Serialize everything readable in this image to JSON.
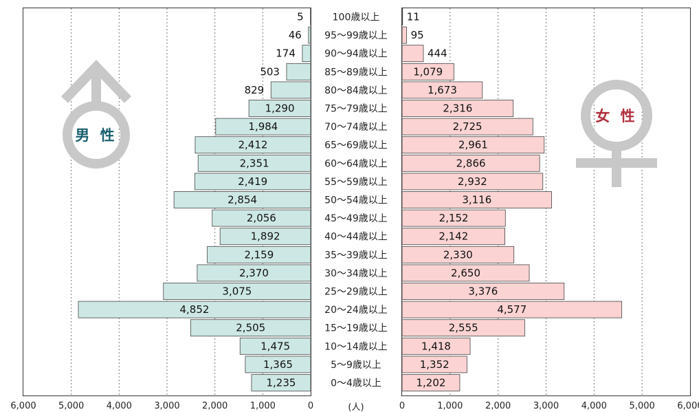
{
  "chart_data": {
    "type": "bar",
    "layout": "population-pyramid",
    "grid": true,
    "unit_label": "(人)",
    "categories": [
      "100歳以上",
      "95〜99歳以上",
      "90〜94歳以上",
      "85〜89歳以上",
      "80〜84歳以上",
      "75〜79歳以上",
      "70〜74歳以上",
      "65〜69歳以上",
      "60〜64歳以上",
      "55〜59歳以上",
      "50〜54歳以上",
      "45〜49歳以上",
      "40〜44歳以上",
      "35〜39歳以上",
      "30〜34歳以上",
      "25〜29歳以上",
      "20〜24歳以上",
      "15〜19歳以上",
      "10〜14歳以上",
      "5〜9歳以上",
      "0〜4歳以上"
    ],
    "series": [
      {
        "name": "男 性",
        "side": "left",
        "values": [
          5,
          46,
          174,
          503,
          829,
          1290,
          1984,
          2412,
          2351,
          2419,
          2854,
          2056,
          1892,
          2159,
          2370,
          3075,
          4852,
          2505,
          1475,
          1365,
          1235
        ],
        "labels": [
          "5",
          "46",
          "174",
          "503",
          "829",
          "1,290",
          "1,984",
          "2,412",
          "2,351",
          "2,419",
          "2,854",
          "2,056",
          "1,892",
          "2,159",
          "2,370",
          "3,075",
          "4,852",
          "2,505",
          "1,475",
          "1,365",
          "1,235"
        ]
      },
      {
        "name": "女 性",
        "side": "right",
        "values": [
          11,
          95,
          444,
          1079,
          1673,
          2316,
          2725,
          2961,
          2866,
          2932,
          3116,
          2152,
          2142,
          2330,
          2650,
          3376,
          4577,
          2555,
          1418,
          1352,
          1202
        ],
        "labels": [
          "11",
          "95",
          "444",
          "1,079",
          "1,673",
          "2,316",
          "2,725",
          "2,961",
          "2,866",
          "2,932",
          "3,116",
          "2,152",
          "2,142",
          "2,330",
          "2,650",
          "3,376",
          "4,577",
          "2,555",
          "1,418",
          "1,352",
          "1,202"
        ]
      }
    ],
    "x_range": [
      0,
      6000
    ],
    "left_ticks": [
      "6,000",
      "5,000",
      "4,000",
      "3,000",
      "2,000",
      "1,000",
      "0"
    ],
    "right_ticks": [
      "0",
      "1,000",
      "2,000",
      "3,000",
      "4,000",
      "5,000",
      "6,000"
    ],
    "colors": {
      "male_fill": "#cde8e4",
      "female_fill": "#fbd3d3",
      "male_text": "#1a5f6e",
      "female_text": "#b0303c",
      "symbol": "#c8c8c8"
    }
  }
}
